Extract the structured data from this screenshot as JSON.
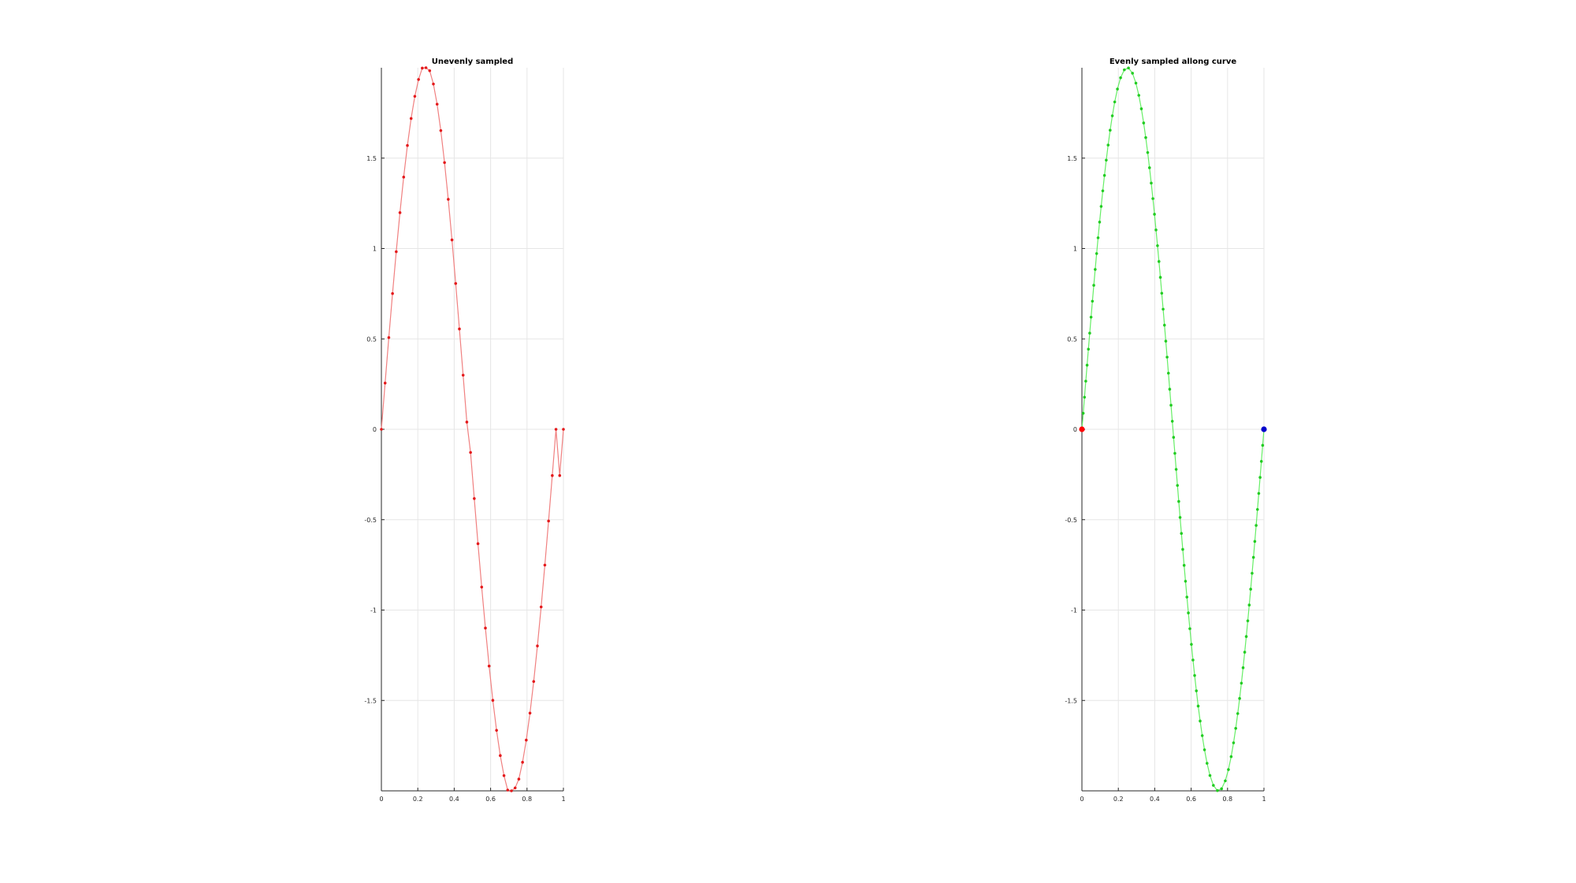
{
  "chart_data": [
    {
      "type": "line",
      "title": "Unevenly sampled",
      "xlim": [
        0,
        1
      ],
      "ylim": [
        -2,
        2
      ],
      "xticks": [
        0,
        0.2,
        0.4,
        0.6,
        0.8,
        1
      ],
      "xtick_labels": [
        "0",
        "0.2",
        "0.4",
        "0.6",
        "0.8",
        "1"
      ],
      "yticks": [
        -1.5,
        -1,
        -0.5,
        0,
        0.5,
        1,
        1.5
      ],
      "ytick_labels": [
        "-1.5",
        "-1",
        "-0.5",
        "0",
        "0.5",
        "1",
        "1.5"
      ],
      "grid": true,
      "series": [
        {
          "color": "#e41a1c",
          "line_color": "#f08080",
          "x": [
            0,
            0.0204,
            0.0408,
            0.0612,
            0.0816,
            0.102,
            0.1224,
            0.1429,
            0.1633,
            0.1837,
            0.2041,
            0.2245,
            0.2449,
            0.2653,
            0.2857,
            0.3061,
            0.3265,
            0.3469,
            0.3673,
            0.3878,
            0.4082,
            0.4286,
            0.449,
            0.4694,
            0.4898,
            0.5102,
            0.5306,
            0.551,
            0.5714,
            0.5918,
            0.6122,
            0.6327,
            0.6531,
            0.6735,
            0.6939,
            0.7143,
            0.7347,
            0.7551,
            0.7755,
            0.7959,
            0.8163,
            0.8367,
            0.8571,
            0.8776,
            0.898,
            0.9184,
            0.9388,
            0.9592,
            0.9796,
            1.0
          ],
          "y": [
            0,
            0.2558,
            0.5075,
            0.7511,
            0.9826,
            1.1984,
            1.3951,
            1.5698,
            1.7194,
            1.8418,
            1.9351,
            1.9979,
            2.0,
            1.9836,
            1.9101,
            1.7985,
            1.6523,
            1.4753,
            1.2721,
            1.0475,
            0.8065,
            0.5551,
            0.2994,
            0.0399,
            -0.1282,
            -0.3831,
            -0.6327,
            -0.8728,
            -1.0996,
            -1.3097,
            -1.4993,
            -1.6652,
            -1.8049,
            -1.9157,
            -1.9956,
            -2.0,
            -1.9839,
            -1.9351,
            -1.8418,
            -1.7194,
            -1.5698,
            -1.3951,
            -1.1984,
            -0.9826,
            -0.7511,
            -0.5075,
            -0.2558,
            0.0,
            -0.2558,
            0.0
          ]
        }
      ],
      "markers": []
    },
    {
      "type": "line",
      "title": "Evenly sampled allong curve",
      "xlim": [
        0,
        1
      ],
      "ylim": [
        -2,
        2
      ],
      "xticks": [
        0,
        0.2,
        0.4,
        0.6,
        0.8,
        1
      ],
      "xtick_labels": [
        "0",
        "0.2",
        "0.4",
        "0.6",
        "0.8",
        "1"
      ],
      "yticks": [
        -1.5,
        -1,
        -0.5,
        0,
        0.5,
        1,
        1.5
      ],
      "ytick_labels": [
        "-1.5",
        "-1",
        "-0.5",
        "0",
        "0.5",
        "1",
        "1.5"
      ],
      "grid": true,
      "series": [
        {
          "color": "#22cc22",
          "line_color": "#66ee66",
          "x": [],
          "y": []
        }
      ],
      "markers": [
        {
          "x": 0,
          "y": 0,
          "color": "#ff0000"
        },
        {
          "x": 1,
          "y": 0,
          "color": "#0000cc"
        }
      ]
    }
  ]
}
